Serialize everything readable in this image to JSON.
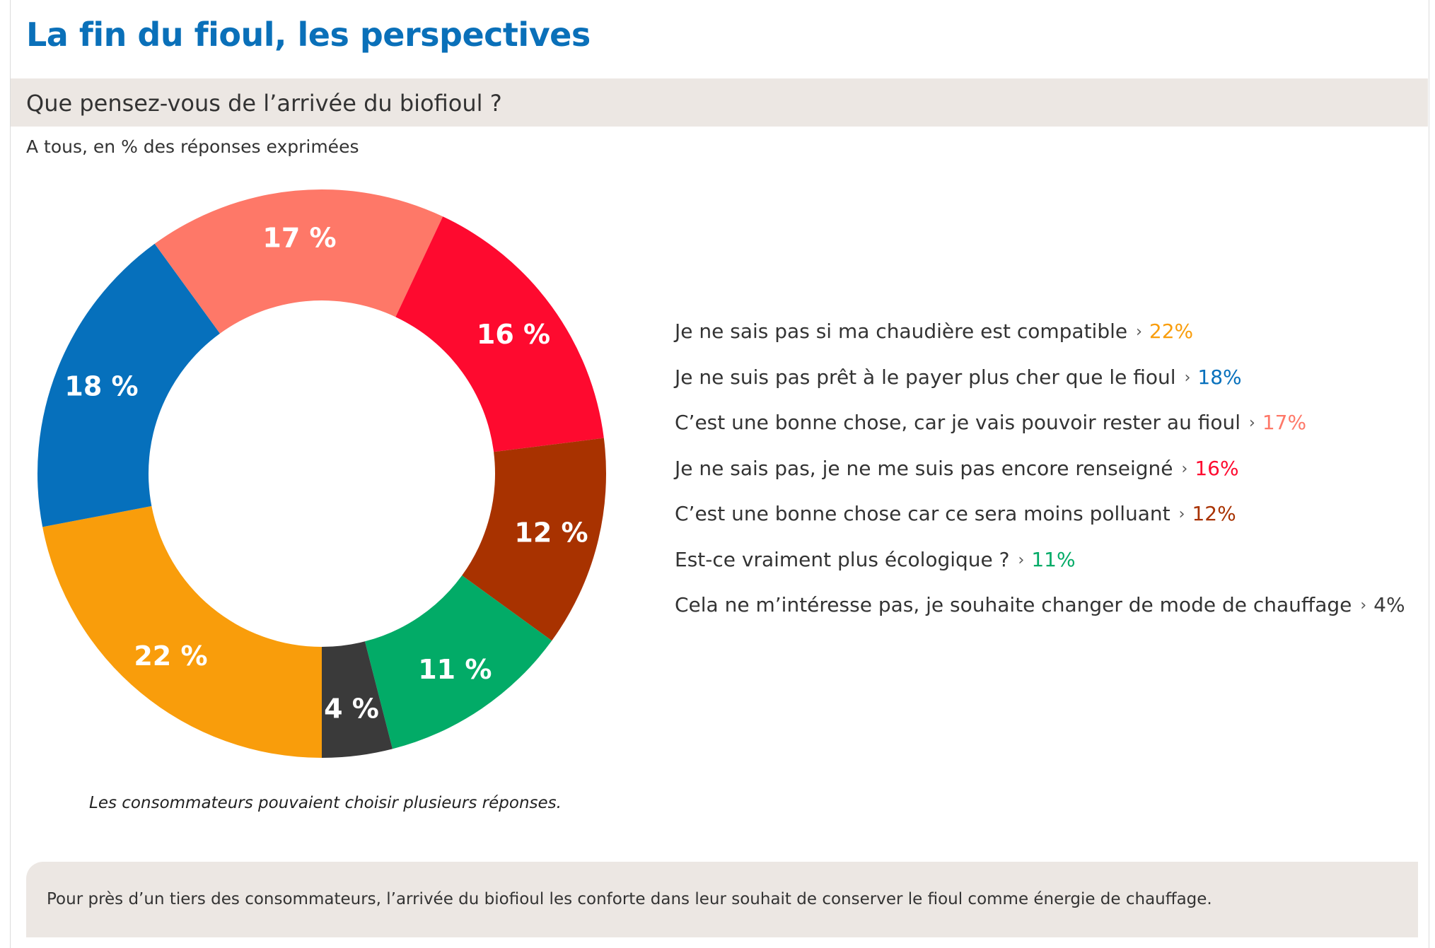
{
  "header": {
    "title": "La fin du fioul, les perspectives",
    "question": "Que pensez-vous de l’arrivée du biofioul ?",
    "subtitle": "A tous, en % des réponses exprimées"
  },
  "chart_data": {
    "type": "pie",
    "donut": true,
    "slices": [
      {
        "label": "Je ne sais pas si ma chaudière est compatible",
        "value": 22,
        "display": "22 %",
        "legend_value": "22%",
        "color": "#f99d0b"
      },
      {
        "label": "Je ne suis pas prêt à le payer plus cher que le fioul",
        "value": 18,
        "display": "18 %",
        "legend_value": "18%",
        "color": "#0670bc"
      },
      {
        "label": "C’est une bonne chose, car je vais pouvoir rester au fioul",
        "value": 17,
        "display": "17 %",
        "legend_value": "17%",
        "color": "#fe7868"
      },
      {
        "label": "Je ne sais pas, je ne me suis pas encore renseigné",
        "value": 16,
        "display": "16 %",
        "legend_value": "16%",
        "color": "#fe0a2f"
      },
      {
        "label": "C’est une bonne chose car ce sera moins polluant",
        "value": 12,
        "display": "12 %",
        "legend_value": "12%",
        "color": "#a83200"
      },
      {
        "label": "Est-ce vraiment plus écologique ?",
        "value": 11,
        "display": "11 %",
        "legend_value": "11%",
        "color": "#02ab67"
      },
      {
        "label": "Cela ne m’intéresse pas, je souhaite changer de mode de chauffage",
        "value": 4,
        "display": "4 %",
        "legend_value": "4%",
        "color": "#3a3a3a"
      }
    ],
    "legend_placement": "right",
    "legend_separator": "›"
  },
  "note": "Les consommateurs pouvaient choisir plusieurs réponses.",
  "footer": {
    "text": "Pour près d’un tiers des consommateurs, l’arrivée du biofioul les conforte dans leur souhait de conserver le fioul comme énergie de chauffage."
  }
}
